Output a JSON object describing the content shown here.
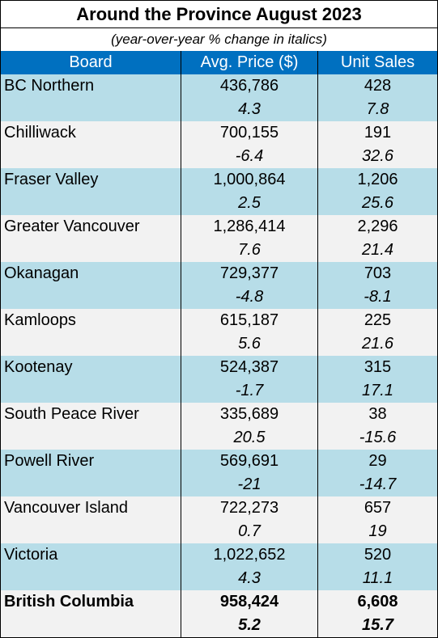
{
  "title": "Around the Province August 2023",
  "subtitle": "(year-over-year % change in italics)",
  "columns": [
    "Board",
    "Avg. Price ($)",
    "Unit Sales"
  ],
  "rows": [
    {
      "board": "BC Northern",
      "price": "436,786",
      "price_change": "4.3",
      "sales": "428",
      "sales_change": "7.8"
    },
    {
      "board": "Chilliwack",
      "price": "700,155",
      "price_change": "-6.4",
      "sales": "191",
      "sales_change": "32.6"
    },
    {
      "board": "Fraser Valley",
      "price": "1,000,864",
      "price_change": "2.5",
      "sales": "1,206",
      "sales_change": "25.6"
    },
    {
      "board": "Greater Vancouver",
      "price": "1,286,414",
      "price_change": "7.6",
      "sales": "2,296",
      "sales_change": "21.4"
    },
    {
      "board": "Okanagan",
      "price": "729,377",
      "price_change": "-4.8",
      "sales": "703",
      "sales_change": "-8.1"
    },
    {
      "board": "Kamloops",
      "price": "615,187",
      "price_change": "5.6",
      "sales": "225",
      "sales_change": "21.6"
    },
    {
      "board": "Kootenay",
      "price": "524,387",
      "price_change": "-1.7",
      "sales": "315",
      "sales_change": "17.1"
    },
    {
      "board": "South Peace River",
      "price": "335,689",
      "price_change": "20.5",
      "sales": "38",
      "sales_change": "-15.6"
    },
    {
      "board": "Powell River",
      "price": "569,691",
      "price_change": "-21",
      "sales": "29",
      "sales_change": "-14.7"
    },
    {
      "board": "Vancouver Island",
      "price": "722,273",
      "price_change": "0.7",
      "sales": "657",
      "sales_change": "19"
    },
    {
      "board": "Victoria",
      "price": "1,022,652",
      "price_change": "4.3",
      "sales": "520",
      "sales_change": "11.1"
    }
  ],
  "total": {
    "board": "British Columbia",
    "price": "958,424",
    "price_change": "5.2",
    "sales": "6,608",
    "sales_change": "15.7"
  },
  "colors": {
    "header": "#0070c0",
    "row_blue": "#b7dde8",
    "row_gray": "#f2f2f2"
  }
}
